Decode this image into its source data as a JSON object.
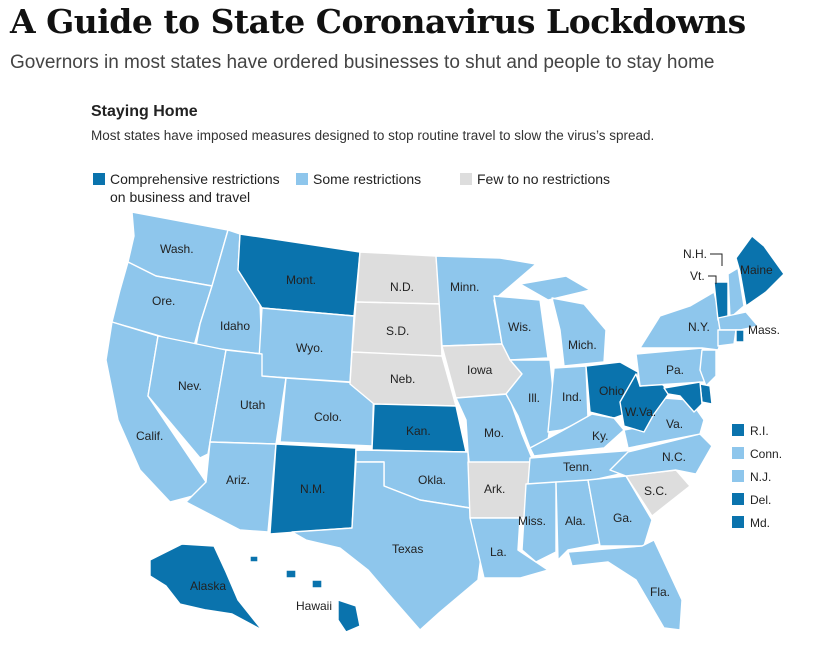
{
  "headline": "A Guide to State Coronavirus Lockdowns",
  "dek": "Governors in most states have ordered businesses to shut and people to stay home",
  "chart": {
    "title": "Staying Home",
    "subtitle": "Most states have imposed measures designed to stop routine travel to slow the virus’s spread."
  },
  "colors": {
    "comprehensive": "#0a73ad",
    "some": "#8ec6ec",
    "few": "#dddddd"
  },
  "legend": {
    "comprehensive_line1": "Comprehensive restrictions",
    "comprehensive_line2": "on business and travel",
    "some": "Some restrictions",
    "few": "Few to no restrictions"
  },
  "states": {
    "wa": {
      "label": "Wash.",
      "status": "some"
    },
    "or": {
      "label": "Ore.",
      "status": "some"
    },
    "ca": {
      "label": "Calif.",
      "status": "some"
    },
    "id": {
      "label": "Idaho",
      "status": "some"
    },
    "nv": {
      "label": "Nev.",
      "status": "some"
    },
    "mt": {
      "label": "Mont.",
      "status": "comprehensive"
    },
    "wy": {
      "label": "Wyo.",
      "status": "some"
    },
    "ut": {
      "label": "Utah",
      "status": "some"
    },
    "az": {
      "label": "Ariz.",
      "status": "some"
    },
    "co": {
      "label": "Colo.",
      "status": "some"
    },
    "nm": {
      "label": "N.M.",
      "status": "comprehensive"
    },
    "nd": {
      "label": "N.D.",
      "status": "few"
    },
    "sd": {
      "label": "S.D.",
      "status": "few"
    },
    "ne": {
      "label": "Neb.",
      "status": "few"
    },
    "ks": {
      "label": "Kan.",
      "status": "comprehensive"
    },
    "ok": {
      "label": "Okla.",
      "status": "some"
    },
    "tx": {
      "label": "Texas",
      "status": "some"
    },
    "mn": {
      "label": "Minn.",
      "status": "some"
    },
    "ia": {
      "label": "Iowa",
      "status": "few"
    },
    "mo": {
      "label": "Mo.",
      "status": "some"
    },
    "ar": {
      "label": "Ark.",
      "status": "few"
    },
    "la": {
      "label": "La.",
      "status": "some"
    },
    "wi": {
      "label": "Wis.",
      "status": "some"
    },
    "il": {
      "label": "Ill.",
      "status": "some"
    },
    "mi": {
      "label": "Mich.",
      "status": "some"
    },
    "in": {
      "label": "Ind.",
      "status": "some"
    },
    "oh": {
      "label": "Ohio",
      "status": "comprehensive"
    },
    "ky": {
      "label": "Ky.",
      "status": "some"
    },
    "tn": {
      "label": "Tenn.",
      "status": "some"
    },
    "ms": {
      "label": "Miss.",
      "status": "some"
    },
    "al": {
      "label": "Ala.",
      "status": "some"
    },
    "ga": {
      "label": "Ga.",
      "status": "some"
    },
    "fl": {
      "label": "Fla.",
      "status": "some"
    },
    "sc": {
      "label": "S.C.",
      "status": "few"
    },
    "nc": {
      "label": "N.C.",
      "status": "some"
    },
    "va": {
      "label": "Va.",
      "status": "some"
    },
    "wv": {
      "label": "W.Va.",
      "status": "comprehensive"
    },
    "pa": {
      "label": "Pa.",
      "status": "some"
    },
    "ny": {
      "label": "N.Y.",
      "status": "some"
    },
    "vt": {
      "label": "Vt.",
      "status": "comprehensive"
    },
    "nh": {
      "label": "N.H.",
      "status": "some"
    },
    "me": {
      "label": "Maine",
      "status": "comprehensive"
    },
    "ma": {
      "label": "Mass.",
      "status": "some"
    },
    "ri": {
      "label": "R.I.",
      "status": "comprehensive"
    },
    "ct": {
      "label": "Conn.",
      "status": "some"
    },
    "nj": {
      "label": "N.J.",
      "status": "some"
    },
    "de": {
      "label": "Del.",
      "status": "comprehensive"
    },
    "md": {
      "label": "Md.",
      "status": "comprehensive"
    },
    "ak": {
      "label": "Alaska",
      "status": "comprehensive"
    },
    "hi": {
      "label": "Hawaii",
      "status": "comprehensive"
    }
  }
}
